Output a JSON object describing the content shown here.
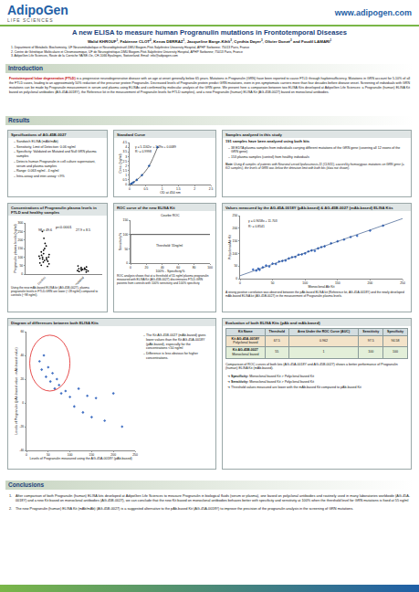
{
  "header": {
    "brand": "AdipoGen",
    "brand_sub": "LIFE SCIENCES",
    "url": "www.adipogen.com",
    "title": "A new ELISA to measure human Progranulin mutations in Frontotemporal Diseases",
    "authors": [
      {
        "text": "Walid KHROUF",
        "sup": "1"
      },
      {
        "text": ", Fabienne CLOT",
        "sup": "2"
      },
      {
        "text": ", Kenza DERRAZ",
        "sup": "1"
      },
      {
        "text": ", Jacqueline Barge-Kihlt",
        "sup": "3"
      },
      {
        "text": ", Cynthia Dayer",
        "sup": "3"
      },
      {
        "text": ", Olivier Donzé",
        "sup": "3"
      },
      {
        "text": " and Foudil LAMARI",
        "sup": "1"
      }
    ],
    "affiliations": [
      {
        "label": "1.",
        "text": "Department of Metabolic Biochemistry, UF Neurométabolique et Neurodégénératif-DMU Biogem-Pitié-Salpêtrière University Hospital, APHP Sorbonne; 75013 Paris, France"
      },
      {
        "label": "2.",
        "text": "Centre de Génétique Moléculaire et Chromosomique, UF de Neurogénétique-DMU Biogem-Pitié-Salpêtrière University Hospital, APHP Sorbonne; 75013 Paris, France"
      },
      {
        "label": "3.",
        "text": "AdipoGen Life Sciences, Route de la Corniche 9A/SE-Oe, CH-1066 Epalinges, Switzerland. Email: info@adipogen.com"
      }
    ]
  },
  "introduction": {
    "heading": "Introduction",
    "highlight": "Frontotemporal lobar degeneration (FTLD)",
    "text": " is a progressive neurodegenerative disease with an age at onset generally below 65 years. Mutations in Progranulin (GRN) have been reported to cause FTLD through haploinsufficiency. Mutations in GRN account for 5-10% of all the FTLD cases, leading to an approximately 50% reduction of the precursor protein Progranulin. Decreased levels of Progranulin protein predict GRN mutations, even in pre-symptomatic carriers more than four decades before disease onset. Screening of individuals with GRN mutations can be made by Progranulin measurement in serum and plasma using ELISAs and confirmed by molecular analysis of the GRN gene. We present here a comparison between two ELISA Kits developed at AdipoGen Life Sciences: a Progranulin (human) ELISA Kit based on polyclonal antibodies (AG-45A-0018Y), the Reference kit in the measurement of Progranulin levels for FTLD samples), and a new Progranulin (human) ELISA Kit (AG-45B-0027) based on monoclonal antibodies."
  },
  "results": {
    "heading": "Results",
    "specifications": {
      "title": "Specifications of AG-45B-0027",
      "items": [
        "Sandwich ELISA (mAb/mAb)",
        "Sensitivity, Limit of Detection: 0.06 ng/ml",
        "Specificity: Validated on Mutated and Null GRN plasma samples",
        "Detects human Progranulin in cell culture supernatant, serum and plasma samples",
        "Range: 0.063 ng/ml - 4 ng/ml",
        "Intra-assay and inter-assay: <9%"
      ]
    },
    "samples": {
      "title": "Samples analyzed in this study",
      "lead": "191 samples have been analyzed using both kits",
      "items": [
        "38 EDTA plasma samples from individuals carrying different mutations of the GRN gene (covering all 12 exons of the GRN gene)",
        "153 plasma samples (control) from healthy individuals"
      ],
      "note_label": "Note:",
      "note": "Using 4 samples of patients with Neuronal ceroid lipofuscinosis-11 (CLN11), caused by homozygous mutations on GRN gene (= KO samples), the levels of GRN was below the detection limit with both kits (data not shown)."
    },
    "evaluation": {
      "title": "Evaluation of both ELISA Kits (pAb and mAb-based)",
      "table": {
        "header": [
          "Kit Name",
          "Threshold",
          "Area Under the ROC Curve (AUC)",
          "Sensitivity",
          "Specificity"
        ],
        "rows": [
          [
            [
              "Kit AG-45A-0018Y",
              "Polyclonal based"
            ],
            67.5,
            0.962,
            97.5,
            94.58
          ],
          [
            [
              "Kit AG-45B-0027",
              "Monoclonal based"
            ],
            55,
            1,
            100,
            100
          ]
        ]
      },
      "caption": "Comparison of ROC curves of both kits (AG-45A-0018Y and AG-45B-0027) shows a better performance of Progranulin (human) ELISA Kit (mAb-based).",
      "findings": [
        {
          "label": "Specificity:",
          "text": "Monoclonal based Kit > Polyclonal based Kit"
        },
        {
          "label": "Sensitivity:",
          "text": "Monoclonal based Kit > Polyclonal based Kit"
        },
        {
          "text": "Threshold values measured are lower with the mAb-based Kit compared to pAb-based Kit"
        }
      ]
    }
  },
  "conclusions": {
    "heading": "Conclusions",
    "items": [
      {
        "label": "1.",
        "text": "After comparison of both Progranulin (human) ELISA kits developed at AdipoGen Life Sciences to measure Progranulin in biological fluids (serum or plasma), one based on polyclonal antibodies and routinely used in many laboratories worldwide (AG-45A-0018Y) and a new Kit based on monoclonal antibodies (AG-45B-0027), we can conclude that the new Kit based on monoclonal antibodies behaves better with specificity and sensitivity at 100% when the threshold level for GRN mutations is fixed at 55 ng/ml"
      },
      {
        "label": "2.",
        "text": "The new Progranulin (human) ELISA Kit (mAb/mAb) (AG-45B-0027) is a suggested alternative to the pAb-based Kit (AG-45A-0018Y) to improve the precision of the progranulin analysis in the screening of GRN mutations."
      }
    ]
  },
  "chart_data": [
    {
      "type": "scatter",
      "title": "Standard Curve",
      "x": [
        0.04,
        0.07,
        0.12,
        0.22,
        0.38,
        0.6,
        0.86
      ],
      "values": [
        0.063,
        0.125,
        0.25,
        0.5,
        1,
        2,
        4
      ],
      "x_label": "OD at 450 nm",
      "y_label": "Conc. (ng/ml)",
      "xlim": [
        0,
        2.5
      ],
      "xticks": [
        0,
        0.5,
        1,
        1.5,
        2,
        2.5
      ],
      "ylim": [
        0,
        4.5
      ],
      "yticks": [
        0,
        0.5,
        1,
        1.5,
        2,
        2.5,
        3,
        3.5,
        4,
        4.5
      ],
      "annotations": [
        "y = 5.1162x² + 1.29x + 0.0089",
        "R² = 0.9998"
      ],
      "color": "#2e5fa8",
      "marker": "diamond",
      "line_style": "solid",
      "grid": false
    },
    {
      "type": "strip",
      "title": "Concentrations of Progranulin plasma levels in FTLD and healthy samples",
      "categories": [
        "Control",
        "mutated"
      ],
      "values": [
        [
          45,
          52,
          60,
          65,
          70,
          75,
          80,
          85,
          88,
          92,
          95,
          98,
          100,
          105,
          110,
          115,
          120,
          130,
          140,
          150,
          165,
          180,
          210,
          250
        ],
        [
          12,
          15,
          18,
          20,
          22,
          25,
          27,
          28,
          30,
          32,
          35,
          38,
          42,
          48
        ]
      ],
      "y_label": "Progranulin plasma levels (ng/ml)",
      "ylim": [
        0,
        300
      ],
      "yticks": [
        0,
        50,
        100,
        150,
        200,
        250,
        300
      ],
      "annotations": [
        {
          "text": "p<0.0001"
        },
        {
          "text": "98 ± 49.6",
          "category": "Control"
        },
        {
          "text": "27.9 ± 8.5",
          "category": "mutated"
        }
      ],
      "color": "#000000",
      "marker": "circle",
      "grid": false,
      "caption": "Using the new mAb-based ELISA kit (AG-45B-0027), plasma progranulin levels in FTLD-GRN are lower (~28 ng/ml) compared to controls (~98 ng/ml)."
    },
    {
      "type": "line",
      "title": "ROC curve of the new ELISA Kit",
      "subtitle": "Courbe ROC",
      "x": [
        0,
        0,
        100
      ],
      "values": [
        0,
        100,
        100
      ],
      "x_label": "100% - Specificity%",
      "y_label": "Sensitivity%",
      "xlim": [
        0,
        100
      ],
      "xticks": [
        0,
        20,
        40,
        60,
        80,
        100
      ],
      "ylim": [
        0,
        150
      ],
      "yticks": [
        0,
        50,
        100,
        150
      ],
      "annotations": [
        "Threshold: 55ng/ml"
      ],
      "color": "#000000",
      "line_style": "solid",
      "grid": false,
      "caption": "ROC analysis shows that at a threshold of 55 ng/ml plasma progranulin measured with ELISA Kit (AG-45B-0027) discriminates FTLD-GRN patients from controls with 100% sensitivity and 100% specificity"
    },
    {
      "type": "scatter",
      "title": "Values measured by the AG-45A-0018Y (pAb-based) & AG-45B-0027 (mAb-based) ELISA Kits",
      "x": [
        20,
        25,
        28,
        30,
        35,
        40,
        45,
        50,
        55,
        60,
        65,
        70,
        75,
        80,
        85,
        90,
        95,
        100,
        105,
        110,
        115,
        120,
        125,
        130,
        140,
        150,
        160,
        170,
        180,
        200,
        220
      ],
      "values": [
        36,
        32,
        40,
        35,
        45,
        52,
        48,
        60,
        58,
        68,
        70,
        72,
        80,
        85,
        86,
        95,
        96,
        100,
        108,
        112,
        110,
        120,
        125,
        128,
        140,
        148,
        155,
        165,
        170,
        190,
        210
      ],
      "trendline": {
        "x": [
          0,
          250
        ],
        "values": [
          11.7,
          238.2
        ]
      },
      "x_label": "Monoclonal Ab Kit",
      "y_label": "Polyclonal Ab Kit",
      "xlim": [
        0,
        250
      ],
      "xticks": [
        0,
        50,
        100,
        150,
        200,
        250
      ],
      "ylim": [
        0,
        250
      ],
      "yticks": [
        0,
        50,
        100,
        150,
        200,
        250
      ],
      "annotations": [
        "y = 0.9058x + 11.703",
        "R² = 0.8541"
      ],
      "color": "#4472c4",
      "marker": "diamond",
      "grid": false,
      "caption": "A strong positive correlation was observed between the pAb-based ELISA kit (Reference kit, AG-45A-0018Y) and the newly developed mAb-based ELISA kit (AG-45B-0027) in the measurement of Progranulin plasma levels."
    },
    {
      "type": "scatter",
      "title": "Diagram of differences between both ELISA Kits",
      "x": [
        30,
        35,
        40,
        45,
        50,
        55,
        60,
        65,
        70,
        75,
        80,
        90,
        100,
        110,
        120,
        130,
        140,
        150,
        160,
        180,
        200,
        220
      ],
      "values": [
        35,
        28,
        40,
        22,
        30,
        18,
        25,
        12,
        20,
        15,
        8,
        10,
        5,
        -3,
        12,
        -8,
        6,
        -12,
        4,
        -15,
        8,
        -20
      ],
      "x_label": "Levels of Progranulin measured using the AG-45A-0018Y (pAb-based)",
      "y_label": "Levels of Progranulin (pAb-based value - mAb-based value)",
      "xlim": [
        0,
        250
      ],
      "xticks": [
        0,
        50,
        100,
        150,
        200,
        250
      ],
      "ylim": [
        -40,
        60
      ],
      "yticks": [
        -40,
        -20,
        0,
        20,
        40,
        60
      ],
      "color": "#4472c4",
      "marker": "diamond",
      "grid": false,
      "notes": [
        "The Kit AG-45B-0027 (mAb-based) gives lower values than the Kit AG-45A-0018Y (pAb-based), especially for the concentrations <50 ng/ml",
        "Difference is less obvious for higher concentrations."
      ]
    }
  ]
}
